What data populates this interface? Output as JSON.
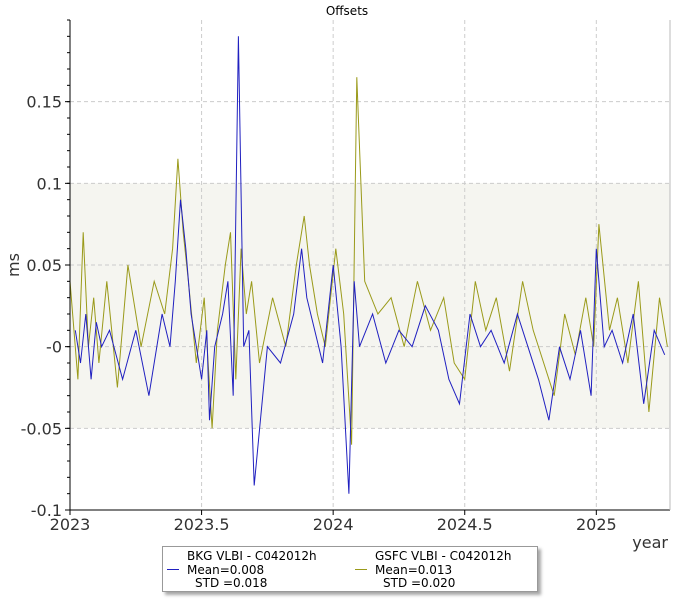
{
  "chart_data": {
    "type": "line",
    "title": "Offsets",
    "xlabel": "year",
    "ylabel": "ms",
    "xlim": [
      2023.0,
      2025.28
    ],
    "ylim": [
      -0.1,
      0.2
    ],
    "shaded_band": [
      -0.05,
      0.1
    ],
    "grid": true,
    "legend_placement": "bottom",
    "x_ticks": [
      2023,
      2023.5,
      2024,
      2024.5,
      2025
    ],
    "x_tick_labels": [
      "2023",
      "2023.5",
      "2024",
      "2024.5",
      "2025"
    ],
    "y_ticks": [
      -0.1,
      -0.05,
      0,
      0.05,
      0.1,
      0.15
    ],
    "y_tick_labels": [
      "-0.1",
      "-0.05",
      "-0",
      "0.05",
      "0.1",
      "0.15"
    ],
    "colors": {
      "band": "#f5f5f0",
      "grid": "#cccccc",
      "axis": "#000000"
    },
    "series": [
      {
        "name": "BKG VLBI - C042012h",
        "mean_label": "Mean=0.008",
        "std_label": "STD =0.018",
        "color": "#2020c0",
        "x": [
          2023.02,
          2023.04,
          2023.06,
          2023.08,
          2023.1,
          2023.12,
          2023.15,
          2023.2,
          2023.25,
          2023.3,
          2023.35,
          2023.38,
          2023.4,
          2023.42,
          2023.44,
          2023.46,
          2023.5,
          2023.52,
          2023.53,
          2023.55,
          2023.58,
          2023.6,
          2023.62,
          2023.64,
          2023.66,
          2023.68,
          2023.7,
          2023.75,
          2023.8,
          2023.85,
          2023.88,
          2023.9,
          2023.93,
          2023.96,
          2024.0,
          2024.03,
          2024.06,
          2024.08,
          2024.1,
          2024.15,
          2024.2,
          2024.25,
          2024.3,
          2024.35,
          2024.4,
          2024.44,
          2024.48,
          2024.52,
          2024.56,
          2024.6,
          2024.65,
          2024.7,
          2024.74,
          2024.78,
          2024.82,
          2024.86,
          2024.9,
          2024.94,
          2024.98,
          2025.0,
          2025.03,
          2025.06,
          2025.1,
          2025.14,
          2025.18,
          2025.22,
          2025.26
        ],
        "y": [
          0.01,
          -0.01,
          0.02,
          -0.02,
          0.015,
          0.0,
          0.01,
          -0.02,
          0.01,
          -0.03,
          0.02,
          0.0,
          0.04,
          0.09,
          0.06,
          0.02,
          -0.02,
          0.01,
          -0.045,
          0.0,
          0.02,
          0.04,
          -0.03,
          0.19,
          0.0,
          0.01,
          -0.085,
          0.0,
          -0.01,
          0.02,
          0.06,
          0.03,
          0.01,
          -0.01,
          0.05,
          0.0,
          -0.09,
          0.04,
          0.0,
          0.02,
          -0.01,
          0.01,
          0.0,
          0.025,
          0.01,
          -0.02,
          -0.035,
          0.02,
          0.0,
          0.01,
          -0.01,
          0.02,
          0.0,
          -0.02,
          -0.045,
          0.0,
          -0.02,
          0.01,
          -0.03,
          0.06,
          0.0,
          0.01,
          -0.01,
          0.02,
          -0.035,
          0.01,
          -0.005
        ]
      },
      {
        "name": "GSFC VLBI - C042012h",
        "mean_label": "Mean=0.013",
        "std_label": "STD =0.020",
        "color": "#9a9a1a",
        "x": [
          2023.0,
          2023.03,
          2023.05,
          2023.07,
          2023.09,
          2023.11,
          2023.14,
          2023.18,
          2023.22,
          2023.27,
          2023.32,
          2023.36,
          2023.39,
          2023.41,
          2023.43,
          2023.45,
          2023.48,
          2023.51,
          2023.54,
          2023.56,
          2023.59,
          2023.61,
          2023.63,
          2023.65,
          2023.67,
          2023.69,
          2023.72,
          2023.77,
          2023.82,
          2023.86,
          2023.89,
          2023.91,
          2023.94,
          2023.97,
          2024.01,
          2024.04,
          2024.07,
          2024.09,
          2024.12,
          2024.17,
          2024.22,
          2024.27,
          2024.32,
          2024.37,
          2024.42,
          2024.46,
          2024.5,
          2024.54,
          2024.58,
          2024.62,
          2024.67,
          2024.72,
          2024.76,
          2024.8,
          2024.84,
          2024.88,
          2024.92,
          2024.96,
          2024.99,
          2025.01,
          2025.05,
          2025.08,
          2025.12,
          2025.16,
          2025.2,
          2025.24,
          2025.27
        ],
        "y": [
          0.04,
          -0.02,
          0.07,
          0.0,
          0.03,
          -0.01,
          0.04,
          -0.025,
          0.05,
          0.0,
          0.04,
          0.02,
          0.06,
          0.115,
          0.07,
          0.04,
          -0.01,
          0.03,
          -0.05,
          0.01,
          0.05,
          0.07,
          -0.02,
          0.06,
          0.02,
          0.04,
          -0.01,
          0.03,
          0.0,
          0.05,
          0.08,
          0.05,
          0.02,
          0.0,
          0.06,
          0.02,
          -0.06,
          0.165,
          0.04,
          0.02,
          0.03,
          0.0,
          0.04,
          0.01,
          0.03,
          -0.01,
          -0.02,
          0.04,
          0.01,
          0.03,
          -0.015,
          0.04,
          0.01,
          -0.01,
          -0.03,
          0.02,
          -0.005,
          0.03,
          0.0,
          0.075,
          0.01,
          0.03,
          -0.01,
          0.04,
          -0.04,
          0.03,
          0.0
        ]
      }
    ]
  }
}
